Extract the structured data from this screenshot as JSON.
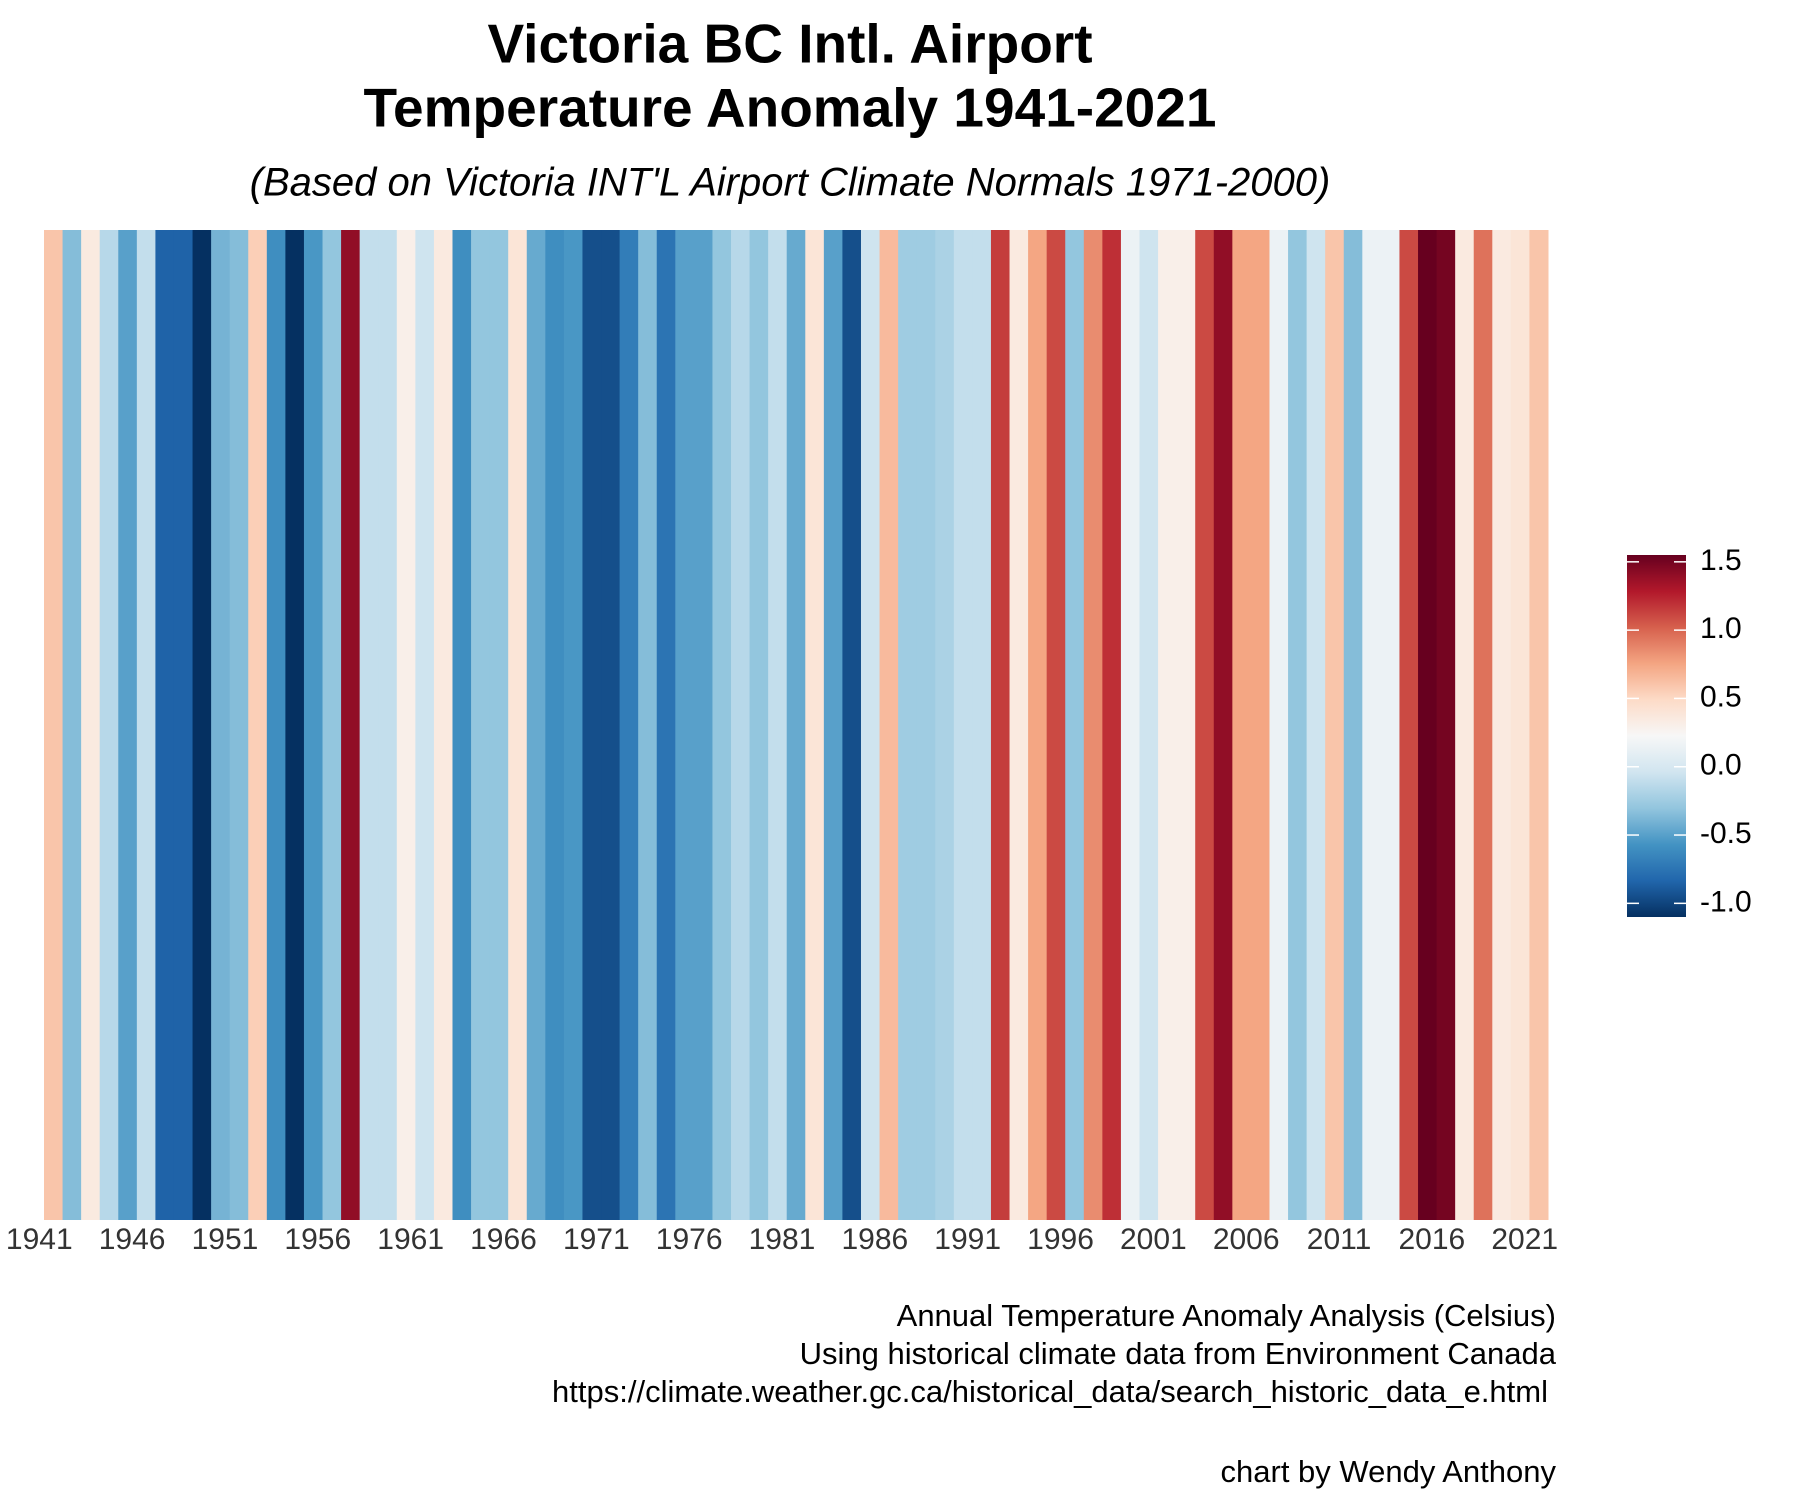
{
  "chart_data": {
    "type": "stripes",
    "title": [
      "Victoria BC Intl. Airport",
      "Temperature Anomaly 1941-2021"
    ],
    "subtitle": "(Based on Victoria INT'L Airport Climate Normals 1971-2000)",
    "caption": [
      "Annual Temperature Anomaly Analysis (Celsius)",
      "Using historical climate data from Environment Canada",
      "https://climate.weather.gc.ca/historical_data/search_historic_data_e.html",
      "chart by Wendy Anthony"
    ],
    "categories": [
      "1941",
      null,
      null,
      null,
      null,
      "1946",
      null,
      null,
      null,
      null,
      "1951",
      null,
      null,
      null,
      null,
      "1956",
      null,
      null,
      null,
      null,
      "1961",
      null,
      null,
      null,
      null,
      "1966",
      null,
      null,
      null,
      null,
      "1971",
      null,
      null,
      null,
      null,
      "1976",
      null,
      null,
      null,
      null,
      "1981",
      null,
      null,
      null,
      null,
      "1986",
      null,
      null,
      null,
      null,
      "1991",
      null,
      null,
      null,
      null,
      "1996",
      null,
      null,
      null,
      null,
      "2001",
      null,
      null,
      null,
      null,
      "2006",
      null,
      null,
      null,
      null,
      "2011",
      null,
      null,
      null,
      null,
      "2016",
      null,
      null,
      null,
      null,
      "2021"
    ],
    "values": [
      0.6,
      -0.35,
      0.35,
      -0.15,
      -0.5,
      -0.1,
      -0.85,
      -0.85,
      -1.1,
      -0.4,
      -0.35,
      0.55,
      -0.6,
      -1.1,
      -0.55,
      -0.3,
      1.4,
      -0.1,
      -0.1,
      0.3,
      -0.05,
      0.35,
      -0.6,
      -0.3,
      -0.3,
      0.4,
      -0.45,
      -0.6,
      -0.55,
      -0.95,
      -0.95,
      -0.7,
      -0.35,
      -0.75,
      -0.5,
      -0.5,
      -0.3,
      -0.15,
      -0.3,
      -0.1,
      -0.45,
      0.4,
      -0.5,
      -0.95,
      -0.05,
      0.65,
      -0.25,
      -0.25,
      -0.2,
      -0.1,
      -0.1,
      1.15,
      0.35,
      0.75,
      1.1,
      -0.3,
      0.85,
      1.2,
      0.15,
      -0.05,
      0.3,
      0.3,
      1.1,
      1.4,
      0.75,
      0.75,
      0.15,
      -0.3,
      -0.05,
      0.6,
      -0.35,
      0.15,
      0.15,
      1.1,
      1.55,
      1.5,
      0.35,
      0.95,
      0.35,
      0.4,
      0.6
    ],
    "colormap": [
      "#053061",
      "#2166ac",
      "#4393c3",
      "#92c5de",
      "#d1e5f0",
      "#f7f7f7",
      "#fddbc7",
      "#f4a582",
      "#d6604d",
      "#b2182b",
      "#67001f"
    ],
    "clim": [
      -1.1,
      1.55
    ],
    "cticks": [
      {
        "value": -1,
        "label": "-1.0"
      },
      -0.5,
      {
        "value": 0,
        "label": "0.0"
      },
      0.5,
      {
        "value": 1,
        "label": "1.0"
      },
      1.5
    ]
  }
}
